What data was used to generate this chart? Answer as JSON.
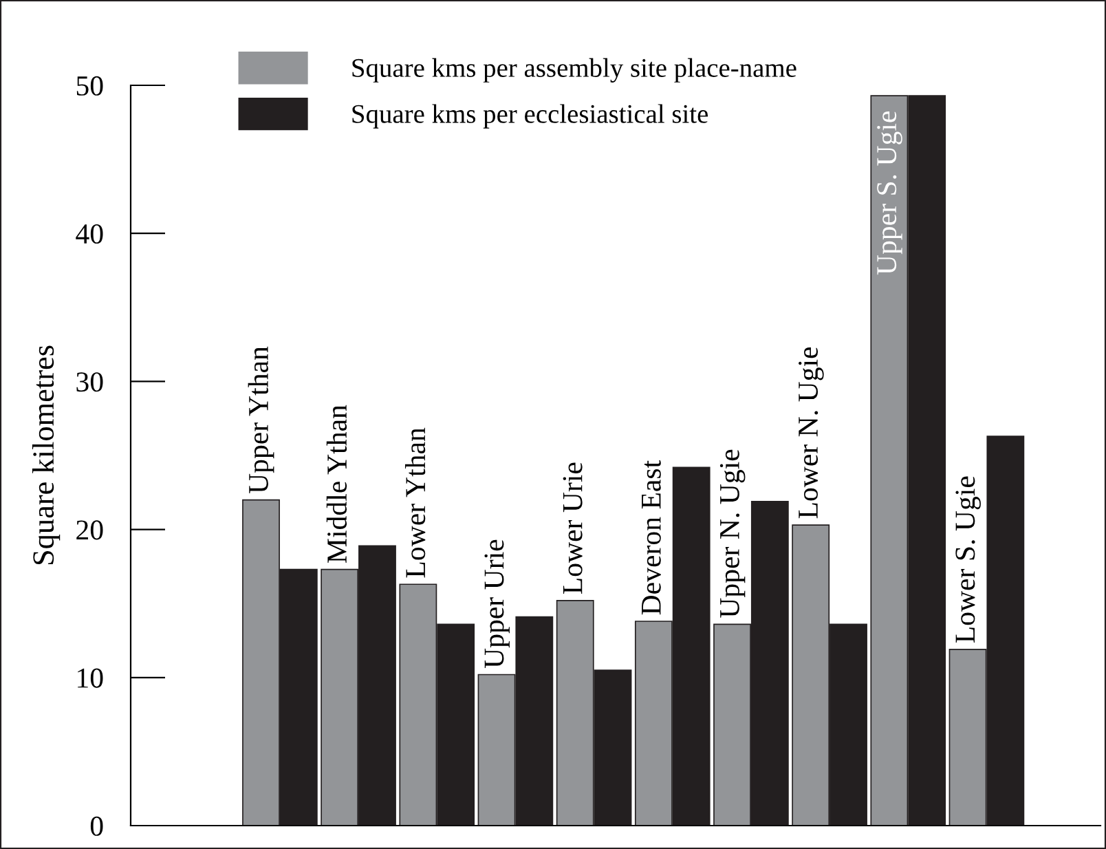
{
  "chart_data": {
    "type": "bar",
    "ylabel": "Square kilometres",
    "categories": [
      "Upper Ythan",
      "Middle Ythan",
      "Lower Ythan",
      "Upper Urie",
      "Lower Urie",
      "Deveron East",
      "Upper N. Ugie",
      "Lower N. Ugie",
      "Upper S. Ugie",
      "Lower S. Ugie"
    ],
    "series": [
      {
        "name": "Square kms per assembly site place-name",
        "color": "#939598",
        "values": [
          22.0,
          17.3,
          16.3,
          10.2,
          15.2,
          13.8,
          13.6,
          20.3,
          49.3,
          11.9
        ]
      },
      {
        "name": "Square kms per ecclesiastical site",
        "color": "#231f20",
        "values": [
          17.3,
          18.9,
          13.6,
          14.1,
          10.5,
          24.2,
          21.9,
          13.6,
          49.3,
          26.3
        ]
      }
    ],
    "ylim": [
      0,
      50
    ],
    "yticks": [
      0,
      10,
      20,
      30,
      40,
      50
    ],
    "grid": false,
    "legend": "top left"
  }
}
